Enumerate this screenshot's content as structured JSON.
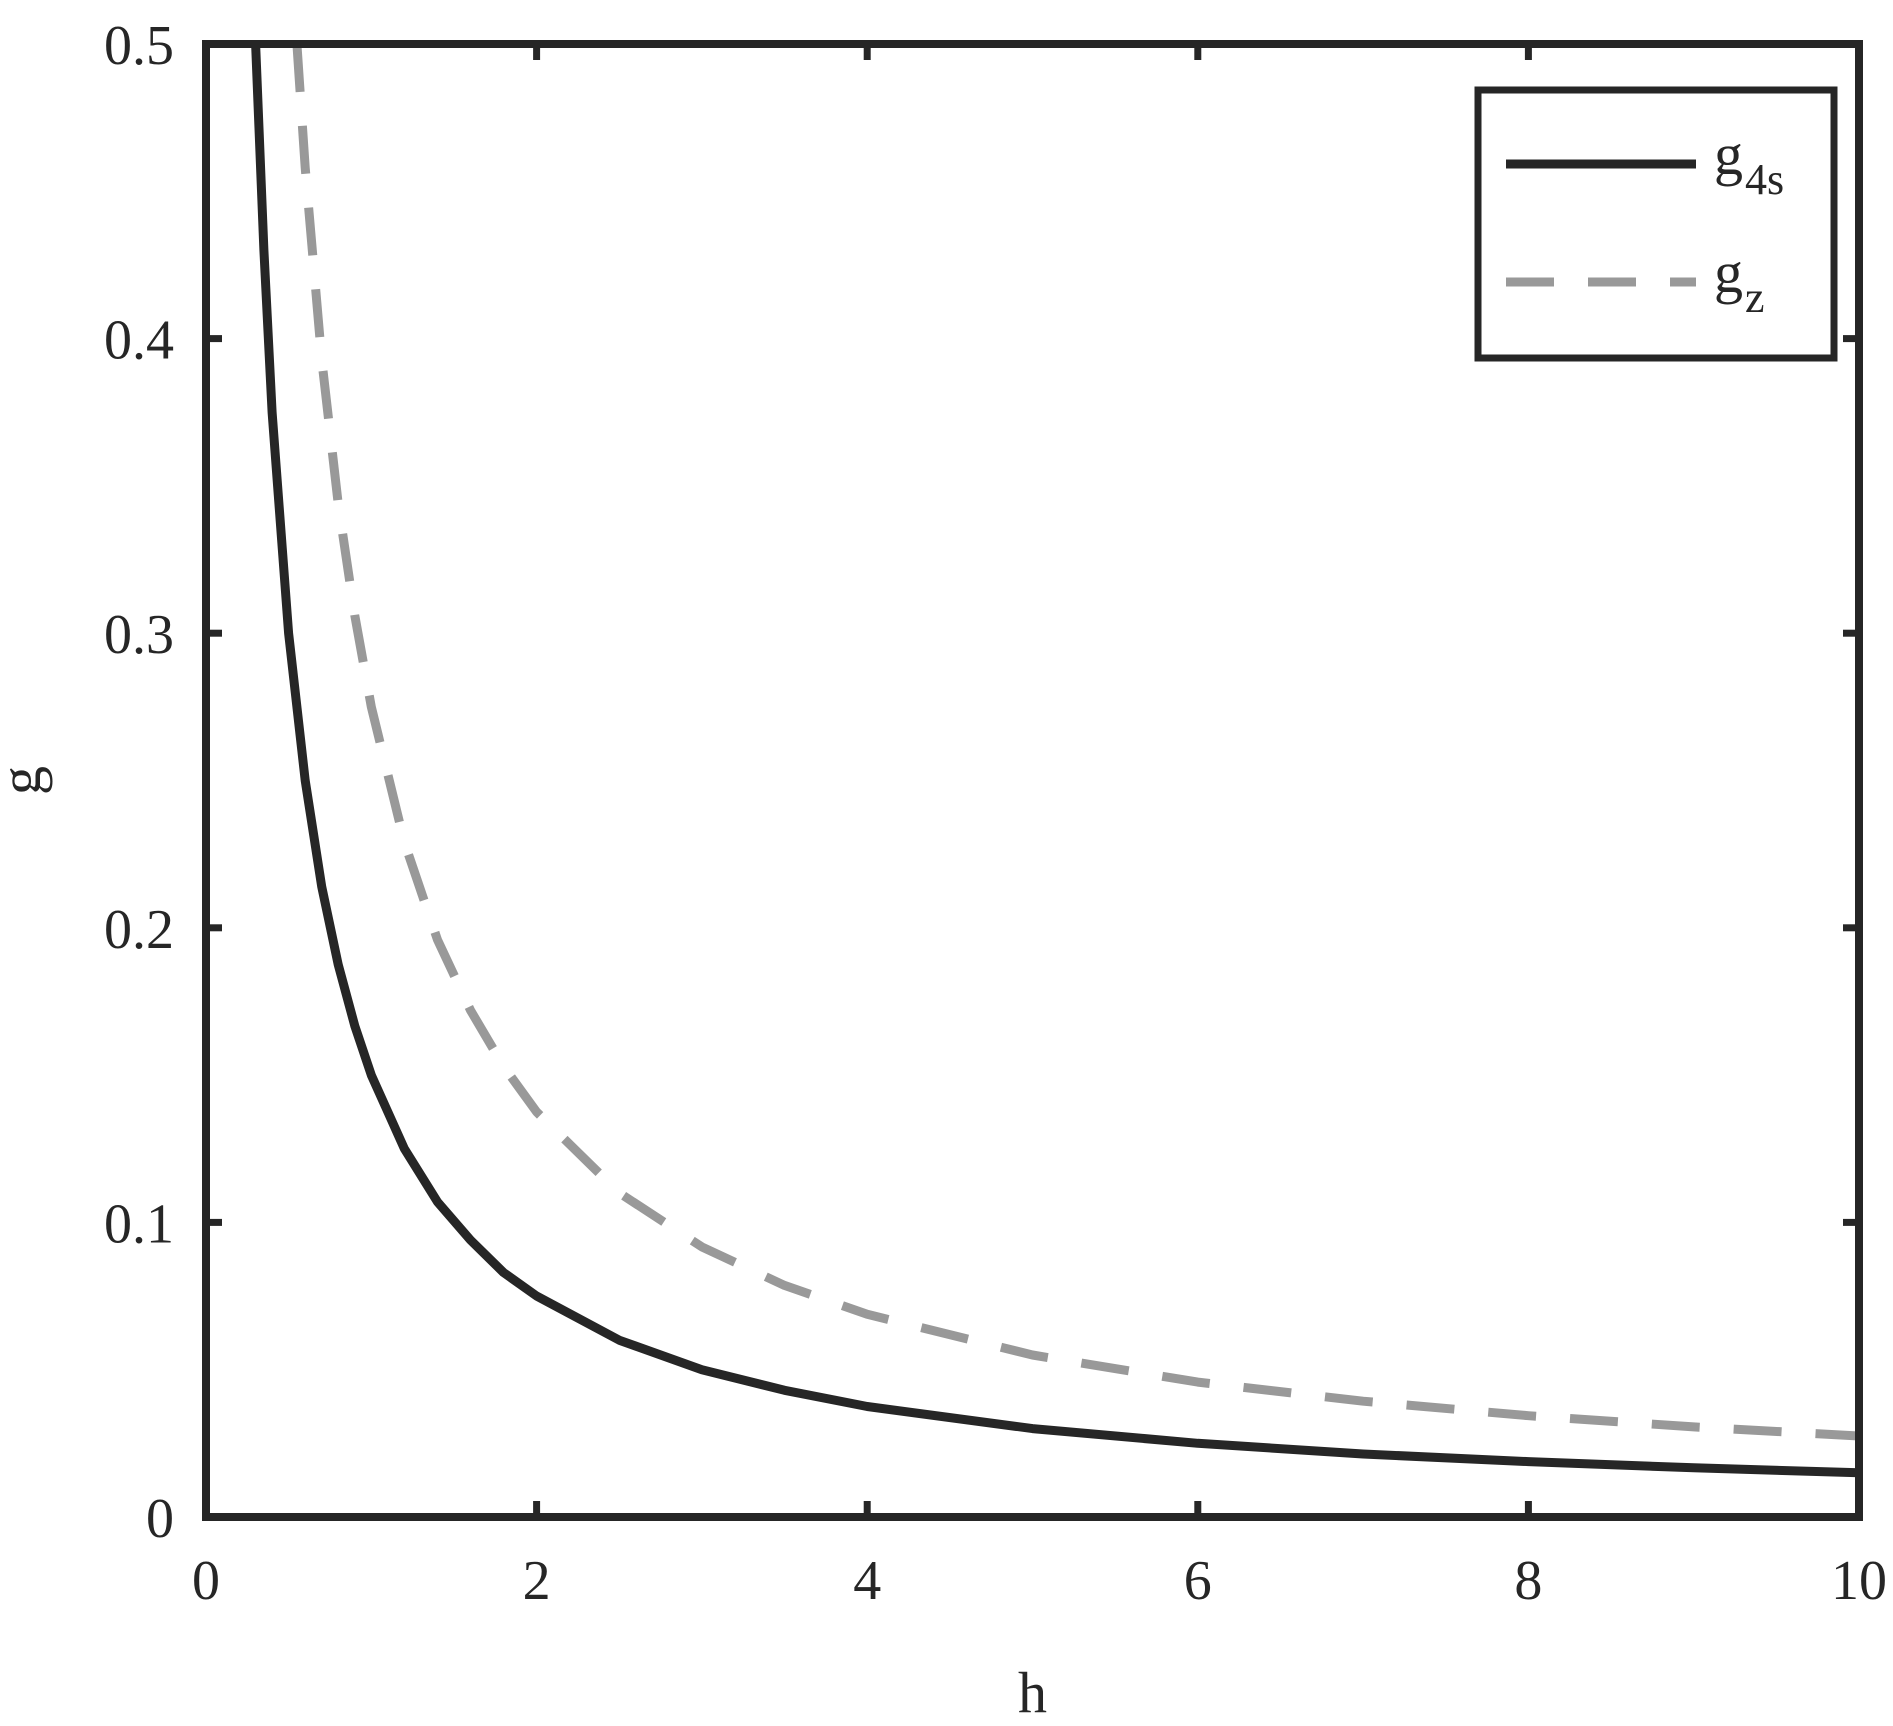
{
  "chart_data": {
    "type": "line",
    "title": "",
    "xlabel": "h",
    "ylabel": "g",
    "xlim": [
      0,
      10
    ],
    "ylim": [
      0,
      0.5
    ],
    "xticks": [
      0,
      2,
      4,
      6,
      8,
      10
    ],
    "xtick_labels": [
      "0",
      "2",
      "4",
      "6",
      "8",
      "10"
    ],
    "yticks": [
      0,
      0.1,
      0.2,
      0.3,
      0.4,
      0.5
    ],
    "ytick_labels": [
      "0",
      "0.1",
      "0.2",
      "0.3",
      "0.4",
      "0.5"
    ],
    "grid": false,
    "legend_position": "top-right",
    "series": [
      {
        "name": "g4s",
        "legend_base": "g",
        "legend_sub": "4s",
        "style": "solid",
        "color": "#262626",
        "x": [
          0.3,
          0.35,
          0.4,
          0.5,
          0.6,
          0.7,
          0.8,
          0.9,
          1.0,
          1.2,
          1.4,
          1.6,
          1.8,
          2.0,
          2.5,
          3.0,
          3.5,
          4.0,
          5.0,
          6.0,
          7.0,
          8.0,
          9.0,
          10.0
        ],
        "y": [
          0.5,
          0.43,
          0.375,
          0.3,
          0.25,
          0.214,
          0.1875,
          0.1667,
          0.15,
          0.125,
          0.107,
          0.094,
          0.083,
          0.075,
          0.06,
          0.05,
          0.043,
          0.0375,
          0.03,
          0.025,
          0.0214,
          0.0188,
          0.0167,
          0.015
        ]
      },
      {
        "name": "gz",
        "legend_base": "g",
        "legend_sub": "z",
        "style": "dashed",
        "color": "#999999",
        "x": [
          0.55,
          0.6,
          0.7,
          0.8,
          0.9,
          1.0,
          1.2,
          1.4,
          1.6,
          1.8,
          2.0,
          2.5,
          3.0,
          3.5,
          4.0,
          5.0,
          6.0,
          7.0,
          8.0,
          9.0,
          10.0
        ],
        "y": [
          0.5,
          0.458,
          0.393,
          0.344,
          0.306,
          0.275,
          0.229,
          0.196,
          0.172,
          0.153,
          0.1375,
          0.11,
          0.0917,
          0.0786,
          0.0688,
          0.055,
          0.0458,
          0.0393,
          0.0344,
          0.0306,
          0.0275
        ]
      }
    ]
  }
}
